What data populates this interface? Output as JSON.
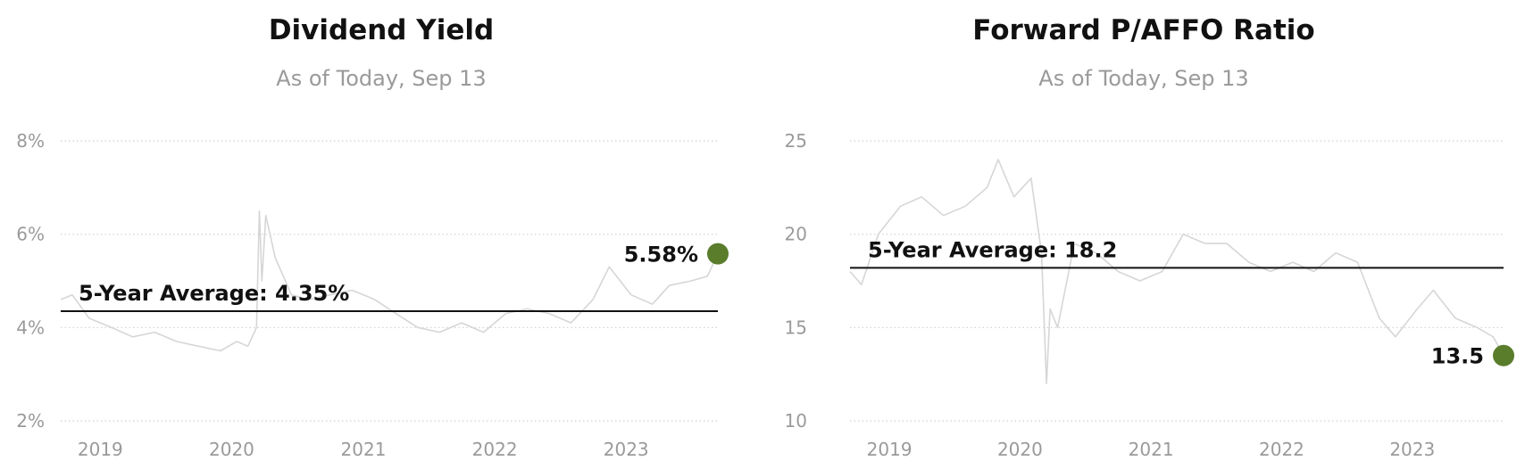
{
  "colors": {
    "accent": "#5a7d2c",
    "series_line": "#d6d6d6",
    "average_line": "#111111",
    "grid": "#cfcfcf"
  },
  "chart_data": [
    {
      "type": "line",
      "title": "Dividend Yield",
      "subtitle": "As of Today, Sep 13",
      "y_ticks": [
        2,
        4,
        6,
        8
      ],
      "y_tick_labels": [
        "2%",
        "4%",
        "6%",
        "8%"
      ],
      "ylim": [
        2,
        8
      ],
      "xlim": [
        "2018-09-13",
        "2023-09-13"
      ],
      "x_tick_labels": [
        "2019",
        "2020",
        "2021",
        "2022",
        "2023"
      ],
      "x_tick_dates": [
        "2019-01-01",
        "2020-01-01",
        "2021-01-01",
        "2022-01-01",
        "2023-01-01"
      ],
      "grid": true,
      "average": {
        "value": 4.35,
        "label": "5-Year Average: 4.35%"
      },
      "current": {
        "date": "2023-09-13",
        "value": 5.58,
        "label": "5.58%"
      },
      "series": [
        {
          "x": [
            "2018-09-13",
            "2018-10-15",
            "2018-12-01",
            "2019-02-01",
            "2019-04-01",
            "2019-06-01",
            "2019-08-01",
            "2019-10-01",
            "2019-12-01",
            "2020-01-15",
            "2020-02-15",
            "2020-03-10",
            "2020-03-18",
            "2020-03-25",
            "2020-04-05",
            "2020-05-01",
            "2020-06-15",
            "2020-08-01",
            "2020-10-01",
            "2020-12-01",
            "2021-02-01",
            "2021-04-01",
            "2021-06-01",
            "2021-08-01",
            "2021-10-01",
            "2021-12-01",
            "2022-02-01",
            "2022-04-01",
            "2022-06-01",
            "2022-08-01",
            "2022-10-01",
            "2022-11-15",
            "2023-01-15",
            "2023-03-15",
            "2023-05-01",
            "2023-07-01",
            "2023-08-15",
            "2023-09-13"
          ],
          "values": [
            4.6,
            4.7,
            4.2,
            4.0,
            3.8,
            3.9,
            3.7,
            3.6,
            3.5,
            3.7,
            3.6,
            4.0,
            6.5,
            5.0,
            6.4,
            5.5,
            4.7,
            4.6,
            4.7,
            4.8,
            4.6,
            4.3,
            4.0,
            3.9,
            4.1,
            3.9,
            4.3,
            4.4,
            4.3,
            4.1,
            4.6,
            5.3,
            4.7,
            4.5,
            4.9,
            5.0,
            5.1,
            5.58
          ]
        }
      ]
    },
    {
      "type": "line",
      "title": "Forward P/AFFO Ratio",
      "subtitle": "As of Today, Sep 13",
      "y_ticks": [
        10,
        15,
        20,
        25
      ],
      "y_tick_labels": [
        "10",
        "15",
        "20",
        "25"
      ],
      "ylim": [
        10,
        25
      ],
      "xlim": [
        "2018-09-13",
        "2023-09-13"
      ],
      "x_tick_labels": [
        "2019",
        "2020",
        "2021",
        "2022",
        "2023"
      ],
      "x_tick_dates": [
        "2019-01-01",
        "2020-01-01",
        "2021-01-01",
        "2022-01-01",
        "2023-01-01"
      ],
      "grid": true,
      "average": {
        "value": 18.2,
        "label": "5-Year Average: 18.2"
      },
      "current": {
        "date": "2023-09-13",
        "value": 13.5,
        "label": "13.5"
      },
      "series": [
        {
          "x": [
            "2018-09-13",
            "2018-10-15",
            "2018-12-01",
            "2019-02-01",
            "2019-04-01",
            "2019-06-01",
            "2019-08-01",
            "2019-10-01",
            "2019-11-01",
            "2019-12-15",
            "2020-02-01",
            "2020-03-01",
            "2020-03-15",
            "2020-03-25",
            "2020-04-15",
            "2020-06-01",
            "2020-08-01",
            "2020-10-01",
            "2020-12-01",
            "2021-02-01",
            "2021-04-01",
            "2021-06-01",
            "2021-08-01",
            "2021-10-01",
            "2021-12-01",
            "2022-02-01",
            "2022-04-01",
            "2022-06-01",
            "2022-08-01",
            "2022-10-01",
            "2022-11-15",
            "2023-01-15",
            "2023-03-01",
            "2023-05-01",
            "2023-07-01",
            "2023-08-15",
            "2023-09-13"
          ],
          "values": [
            18.0,
            17.3,
            20.0,
            21.5,
            22.0,
            21.0,
            21.5,
            22.5,
            24.0,
            22.0,
            23.0,
            19.0,
            12.0,
            16.0,
            15.0,
            19.5,
            19.0,
            18.0,
            17.5,
            18.0,
            20.0,
            19.5,
            19.5,
            18.5,
            18.0,
            18.5,
            18.0,
            19.0,
            18.5,
            15.5,
            14.5,
            16.0,
            17.0,
            15.5,
            15.0,
            14.5,
            13.5
          ]
        }
      ]
    }
  ]
}
